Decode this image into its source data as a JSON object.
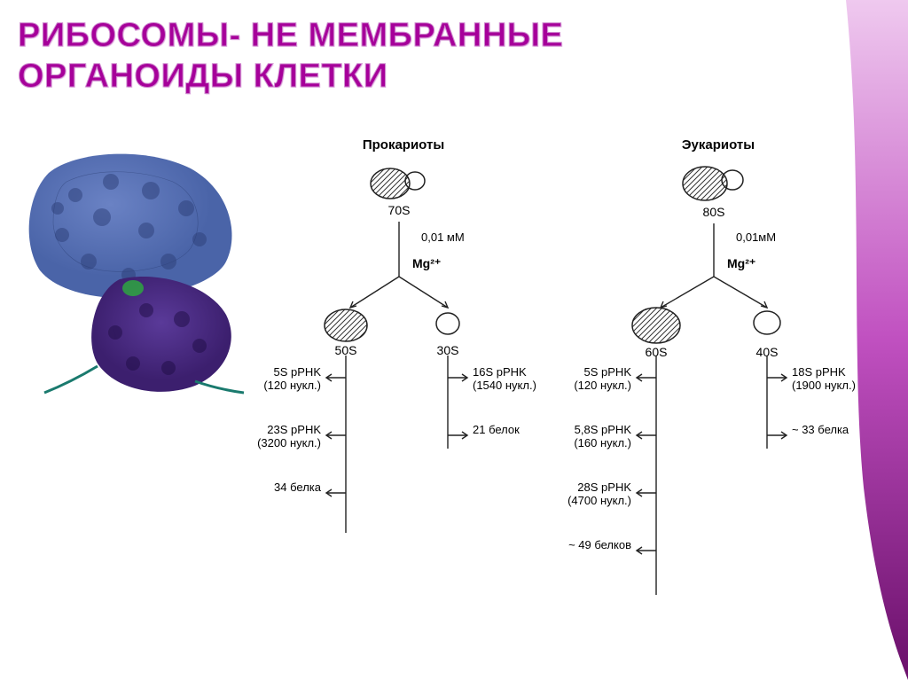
{
  "title_line1": "Рибосомы- не мембранные",
  "title_line2": "органоиды клетки",
  "title_color": "#a6009a",
  "title_stroke": "#d08fd0",
  "title_fontsize": 38,
  "side_gradient": {
    "top": "#efc9ef",
    "mid": "#c050c0",
    "bottom": "#6a0f6a"
  },
  "ribosome_colors": {
    "large": "#4a64a8",
    "small": "#3c1f6e",
    "highlight": "#2f9e44",
    "tail": "#1a7a6e"
  },
  "prokaryote": {
    "heading": "Прокариоты",
    "top_label": "70S",
    "condition1": "0,01 мМ",
    "condition2": "Mg²⁺",
    "left_subunit": "50S",
    "right_subunit": "30S",
    "left_components": [
      {
        "l1": "5S pPHK",
        "l2": "(120 нукл.)"
      },
      {
        "l1": "23S pPHK",
        "l2": "(3200 нукл.)"
      },
      {
        "l1": "34 белка",
        "l2": ""
      }
    ],
    "right_components": [
      {
        "l1": "16S pPHK",
        "l2": "(1540 нукл.)"
      },
      {
        "l1": "21 белок",
        "l2": ""
      }
    ]
  },
  "eukaryote": {
    "heading": "Эукариоты",
    "top_label": "80S",
    "condition1": "0,01мМ",
    "condition2": "Mg²⁺",
    "left_subunit": "60S",
    "right_subunit": "40S",
    "left_components": [
      {
        "l1": "5S pPHK",
        "l2": "(120 нукл.)"
      },
      {
        "l1": "5,8S pPHK",
        "l2": "(160 нукл.)"
      },
      {
        "l1": "28S pPHK",
        "l2": "(4700 нукл.)"
      },
      {
        "l1": "~ 49 белков",
        "l2": ""
      }
    ],
    "right_components": [
      {
        "l1": "18S pPHK",
        "l2": "(1900 нукл.)"
      },
      {
        "l1": "~ 33 белка",
        "l2": ""
      }
    ]
  }
}
